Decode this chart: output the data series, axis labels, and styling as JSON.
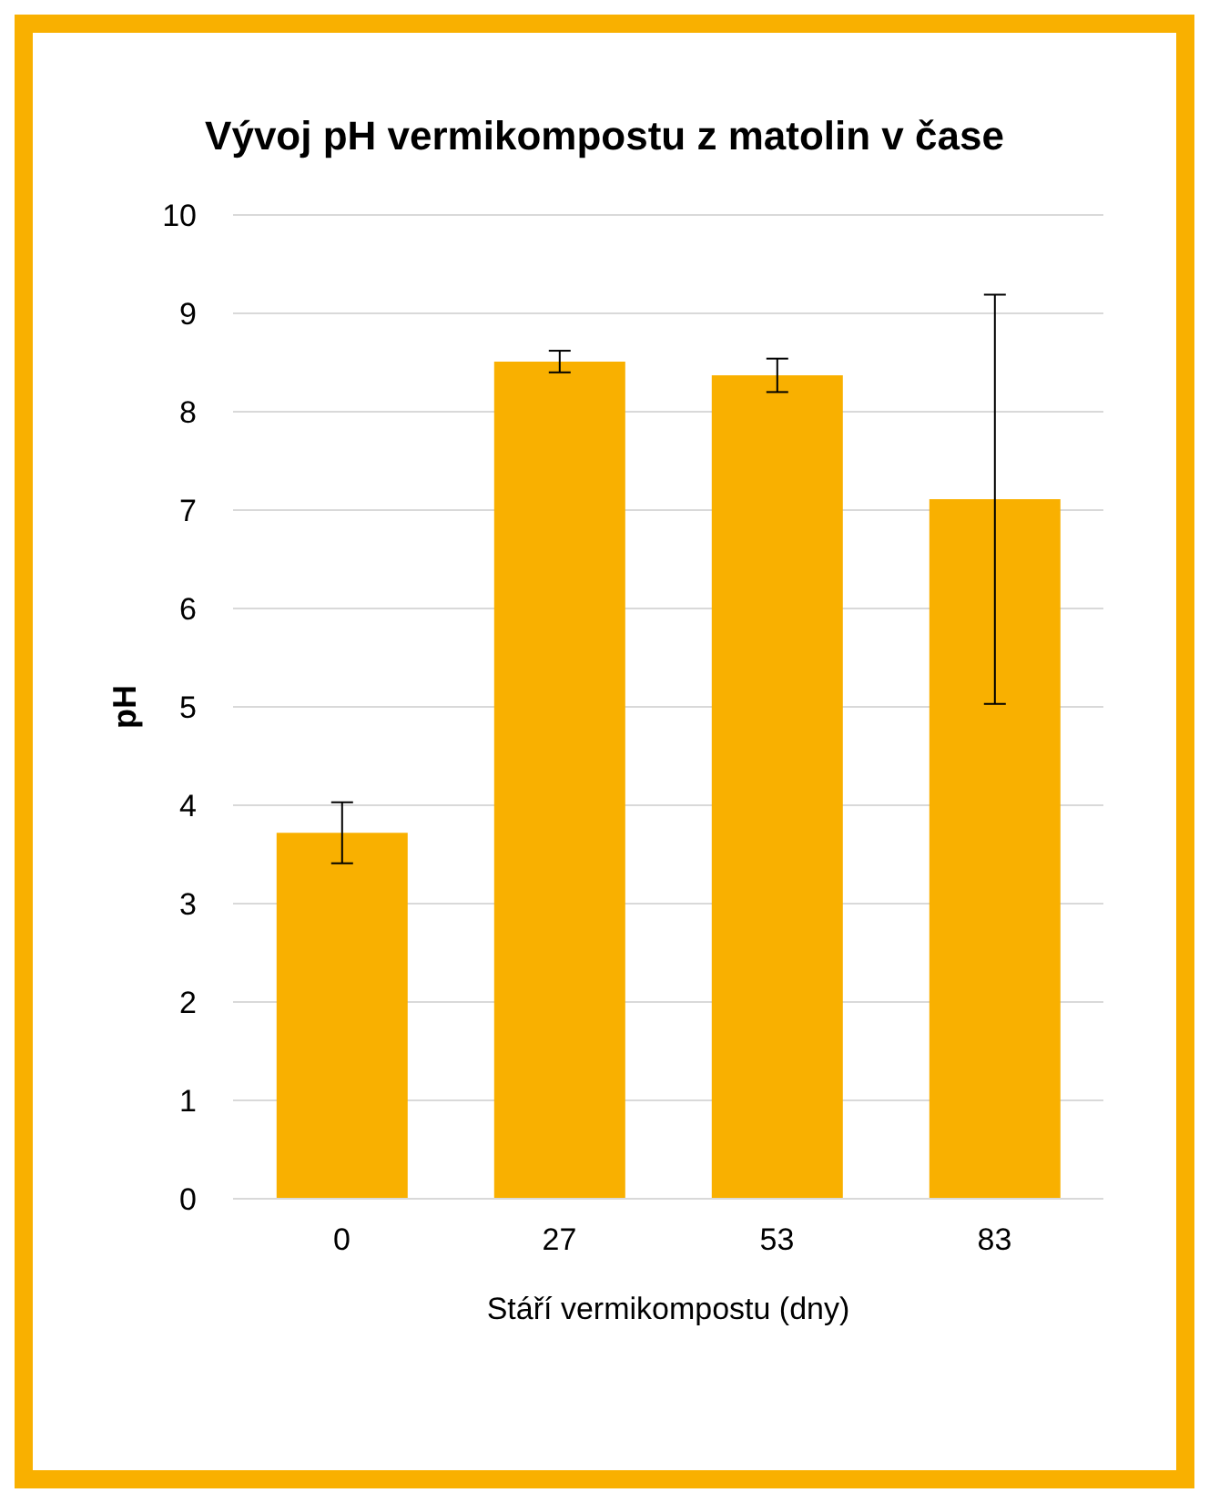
{
  "chart_data": {
    "type": "bar",
    "title": "Vývoj pH vermikompostu z matolin v čase",
    "xlabel": "Stáří vermikompostu (dny)",
    "ylabel": "pH",
    "categories": [
      "0",
      "27",
      "53",
      "83"
    ],
    "values": [
      3.72,
      8.51,
      8.37,
      7.11
    ],
    "errors": [
      0.31,
      0.11,
      0.17,
      2.08
    ],
    "color": "#f9b000",
    "ylim": [
      0,
      10
    ],
    "yticks": [
      0,
      1,
      2,
      3,
      4,
      5,
      6,
      7,
      8,
      9,
      10
    ],
    "grid": "y"
  }
}
